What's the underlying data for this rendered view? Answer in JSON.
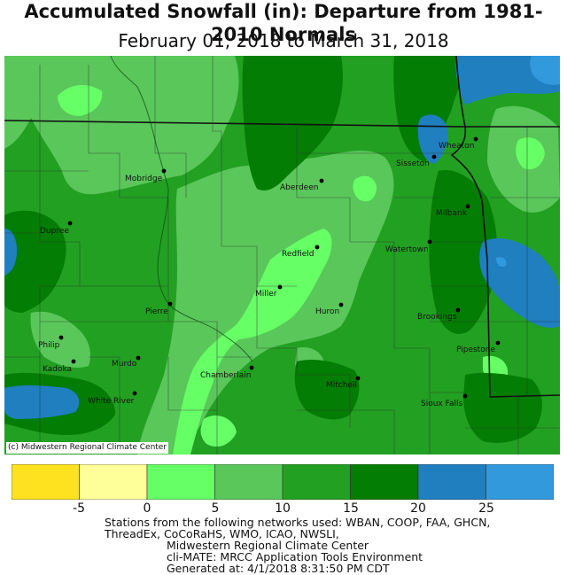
{
  "title": "Accumulated Snowfall (in): Departure from 1981-2010 Normals",
  "subtitle": "February 01, 2018 to March 31, 2018",
  "credit": "(c) Midwestern Regional Climate Center",
  "colors": {
    "c_lt_neg5": "#ffe21f",
    "c_neg5_0": "#ffff99",
    "c_0_5": "#66ff66",
    "c_5_10": "#5ac75a",
    "c_10_15": "#22a022",
    "c_15_20": "#037d03",
    "c_20_25": "#1f7fbf",
    "c_gt_25": "#3399dd"
  },
  "legend": {
    "bins": [
      {
        "color": "#ffe21f"
      },
      {
        "color": "#ffff99"
      },
      {
        "color": "#66ff66"
      },
      {
        "color": "#5ac75a"
      },
      {
        "color": "#22a022"
      },
      {
        "color": "#037d03"
      },
      {
        "color": "#1f7fbf"
      },
      {
        "color": "#3399dd"
      }
    ],
    "tick_labels": [
      "-5",
      "0",
      "5",
      "10",
      "15",
      "20",
      "25"
    ]
  },
  "cities": [
    {
      "name": "Mobridge"
    },
    {
      "name": "Aberdeen"
    },
    {
      "name": "Sisseton"
    },
    {
      "name": "Wheaton"
    },
    {
      "name": "Dupree"
    },
    {
      "name": "Milbank"
    },
    {
      "name": "Redfield"
    },
    {
      "name": "Watertown"
    },
    {
      "name": "Miller"
    },
    {
      "name": "Pierre"
    },
    {
      "name": "Huron"
    },
    {
      "name": "Brookings"
    },
    {
      "name": "Philip"
    },
    {
      "name": "Kadoka"
    },
    {
      "name": "Murdo"
    },
    {
      "name": "Pipestone"
    },
    {
      "name": "Chamberlain"
    },
    {
      "name": "Mitchell"
    },
    {
      "name": "White River"
    },
    {
      "name": "Sioux Falls"
    }
  ],
  "footer": {
    "line1": "Stations from the following networks used: WBAN, COOP, FAA, GHCN,",
    "line2": "ThreadEx, CoCoRaHS, WMO, ICAO, NWSLI,",
    "line3": "Midwestern Regional Climate Center",
    "line4": "cli-MATE: MRCC Application Tools Environment",
    "line5": "Generated at: 4/1/2018 8:31:50 PM CDT"
  }
}
